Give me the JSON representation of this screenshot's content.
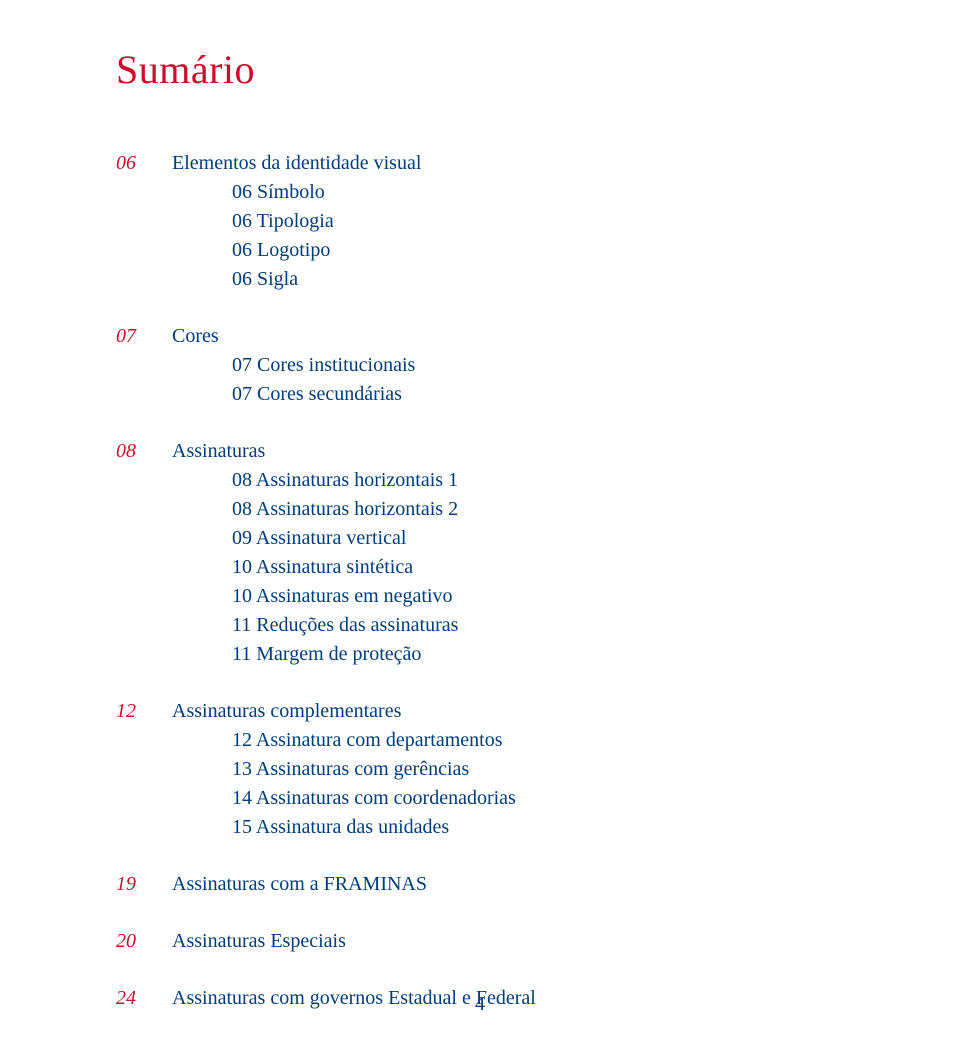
{
  "title": "Sumário",
  "colors": {
    "red": "#c8102e",
    "blue": "#003d7a",
    "text": "#003d7a",
    "background": "#ffffff"
  },
  "sections": [
    {
      "num": "06",
      "title": "Elementos da identidade visual",
      "subs": [
        "06 Símbolo",
        "06 Tipologia",
        "06 Logotipo",
        "06 Sigla"
      ]
    },
    {
      "num": "07",
      "title": "Cores",
      "subs": [
        "07 Cores institucionais",
        "07 Cores secundárias"
      ]
    },
    {
      "num": "08",
      "title": "Assinaturas",
      "subs": [
        "08 Assinaturas horizontais 1",
        "08 Assinaturas horizontais 2",
        "09 Assinatura vertical",
        "10 Assinatura sintética",
        "10 Assinaturas em negativo",
        "11 Reduções das assinaturas",
        "11 Margem de proteção"
      ]
    },
    {
      "num": "12",
      "title": "Assinaturas complementares",
      "subs": [
        "12 Assinatura com departamentos",
        "13 Assinaturas com gerências",
        "14 Assinaturas com coordenadorias",
        "15 Assinatura das unidades"
      ]
    },
    {
      "num": "19",
      "title": "Assinaturas com a FRAMINAS",
      "subs": []
    },
    {
      "num": "20",
      "title": "Assinaturas Especiais",
      "subs": []
    },
    {
      "num": "24",
      "title": "Assinaturas com governos Estadual e Federal",
      "subs": []
    }
  ],
  "pageNumber": "4"
}
